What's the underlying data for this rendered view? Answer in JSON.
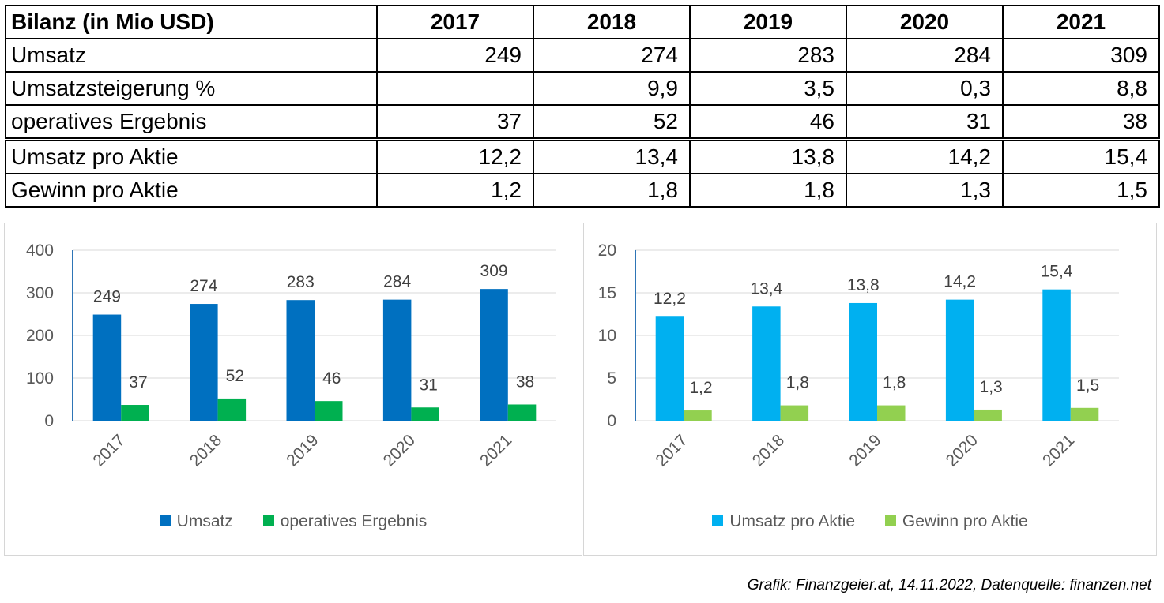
{
  "table": {
    "header": [
      "Bilanz (in Mio USD)",
      "2017",
      "2018",
      "2019",
      "2020",
      "2021"
    ],
    "rows": [
      {
        "label": "Umsatz",
        "values": [
          "249",
          "274",
          "283",
          "284",
          "309"
        ]
      },
      {
        "label": "Umsatzsteigerung %",
        "values": [
          "",
          "9,9",
          "3,5",
          "0,3",
          "8,8"
        ]
      },
      {
        "label": "operatives Ergebnis",
        "values": [
          "37",
          "52",
          "46",
          "31",
          "38"
        ]
      },
      {
        "label": "Umsatz pro Aktie",
        "values": [
          "12,2",
          "13,4",
          "13,8",
          "14,2",
          "15,4"
        ]
      },
      {
        "label": "Gewinn pro Aktie",
        "values": [
          "1,2",
          "1,8",
          "1,8",
          "1,3",
          "1,5"
        ]
      }
    ]
  },
  "chart_data": [
    {
      "type": "bar",
      "categories": [
        "2017",
        "2018",
        "2019",
        "2020",
        "2021"
      ],
      "series": [
        {
          "name": "Umsatz",
          "values": [
            249,
            274,
            283,
            284,
            309
          ],
          "labels": [
            "249",
            "274",
            "283",
            "284",
            "309"
          ],
          "color": "#0070C0"
        },
        {
          "name": "operatives Ergebnis",
          "values": [
            37,
            52,
            46,
            31,
            38
          ],
          "labels": [
            "37",
            "52",
            "46",
            "31",
            "38"
          ],
          "color": "#00B050"
        }
      ],
      "yticks": [
        "0",
        "100",
        "200",
        "300",
        "400"
      ],
      "ylim": [
        0,
        400
      ],
      "grid": true,
      "legend": "bottom"
    },
    {
      "type": "bar",
      "categories": [
        "2017",
        "2018",
        "2019",
        "2020",
        "2021"
      ],
      "series": [
        {
          "name": "Umsatz pro Aktie",
          "values": [
            12.2,
            13.4,
            13.8,
            14.2,
            15.4
          ],
          "labels": [
            "12,2",
            "13,4",
            "13,8",
            "14,2",
            "15,4"
          ],
          "color": "#00B0F0"
        },
        {
          "name": "Gewinn pro Aktie",
          "values": [
            1.2,
            1.8,
            1.8,
            1.3,
            1.5
          ],
          "labels": [
            "1,2",
            "1,8",
            "1,8",
            "1,3",
            "1,5"
          ],
          "color": "#92D050"
        }
      ],
      "yticks": [
        "0",
        "5",
        "10",
        "15",
        "20"
      ],
      "ylim": [
        0,
        20
      ],
      "grid": true,
      "legend": "bottom"
    }
  ],
  "footnote": "Grafik: Finanzgeier.at, 14.11.2022, Datenquelle: finanzen.net"
}
